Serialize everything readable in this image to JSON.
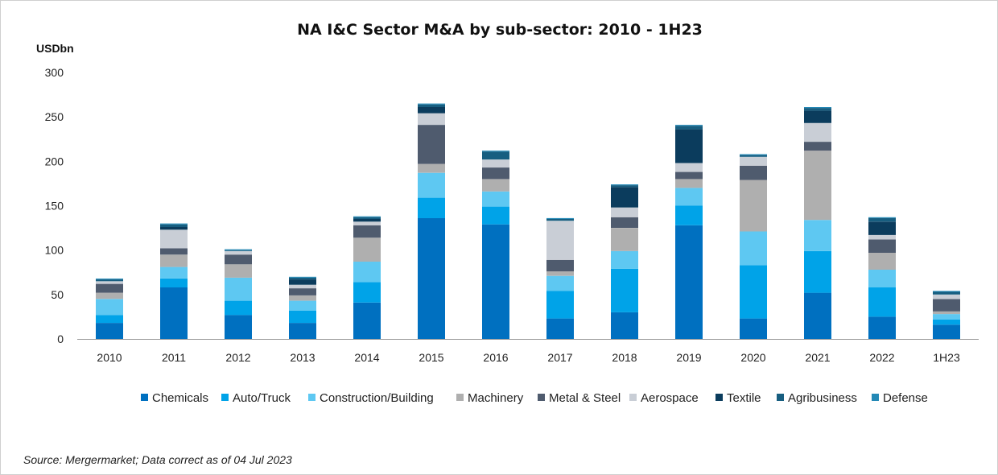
{
  "chart_data": {
    "type": "bar",
    "stacked": true,
    "title": "NA I&C Sector M&A by sub-sector: 2010 - 1H23",
    "ylabel": "USDbn",
    "xlabel": "",
    "ylim": [
      0,
      300
    ],
    "yticks": [
      0,
      50,
      100,
      150,
      200,
      250,
      300
    ],
    "grid": false,
    "legend_position": "bottom",
    "categories": [
      "2010",
      "2011",
      "2012",
      "2013",
      "2014",
      "2015",
      "2016",
      "2017",
      "2018",
      "2019",
      "2020",
      "2021",
      "2022",
      "1H23"
    ],
    "series": [
      {
        "name": "Chemicals",
        "color": "#0070C0",
        "values": [
          18,
          58,
          27,
          18,
          41,
          136,
          129,
          23,
          30,
          128,
          23,
          52,
          25,
          16
        ]
      },
      {
        "name": "Auto/Truck",
        "color": "#00A3E8",
        "values": [
          9,
          10,
          16,
          14,
          23,
          23,
          20,
          31,
          49,
          22,
          60,
          47,
          33,
          6
        ]
      },
      {
        "name": "Construction/Building",
        "color": "#5EC8F2",
        "values": [
          18,
          13,
          26,
          11,
          23,
          28,
          17,
          17,
          20,
          20,
          38,
          35,
          20,
          6
        ]
      },
      {
        "name": "Machinery",
        "color": "#AFAFAF",
        "values": [
          7,
          14,
          15,
          6,
          27,
          10,
          14,
          5,
          26,
          10,
          58,
          78,
          19,
          3
        ]
      },
      {
        "name": "Metal & Steel",
        "color": "#4F5B6E",
        "values": [
          10,
          7,
          11,
          8,
          14,
          44,
          13,
          13,
          12,
          8,
          16,
          10,
          15,
          14
        ]
      },
      {
        "name": "Aerospace",
        "color": "#C9CED6",
        "values": [
          3,
          21,
          4,
          4,
          4,
          13,
          9,
          44,
          11,
          10,
          10,
          21,
          5,
          5
        ]
      },
      {
        "name": "Textile",
        "color": "#0B3C5D",
        "values": [
          0,
          3,
          0,
          6,
          3,
          7,
          0,
          0,
          23,
          38,
          0,
          14,
          15,
          0
        ]
      },
      {
        "name": "Agribusiness",
        "color": "#175E80",
        "values": [
          2,
          3,
          1,
          2,
          2,
          3,
          9,
          2,
          2,
          4,
          2,
          3,
          4,
          3
        ]
      },
      {
        "name": "Defense",
        "color": "#2489B6",
        "values": [
          1,
          1,
          1,
          1,
          1,
          1,
          1,
          1,
          1,
          1,
          1,
          1,
          1,
          1
        ]
      }
    ]
  },
  "source_note": "Source: Mergermarket; Data correct as of 04 Jul 2023"
}
